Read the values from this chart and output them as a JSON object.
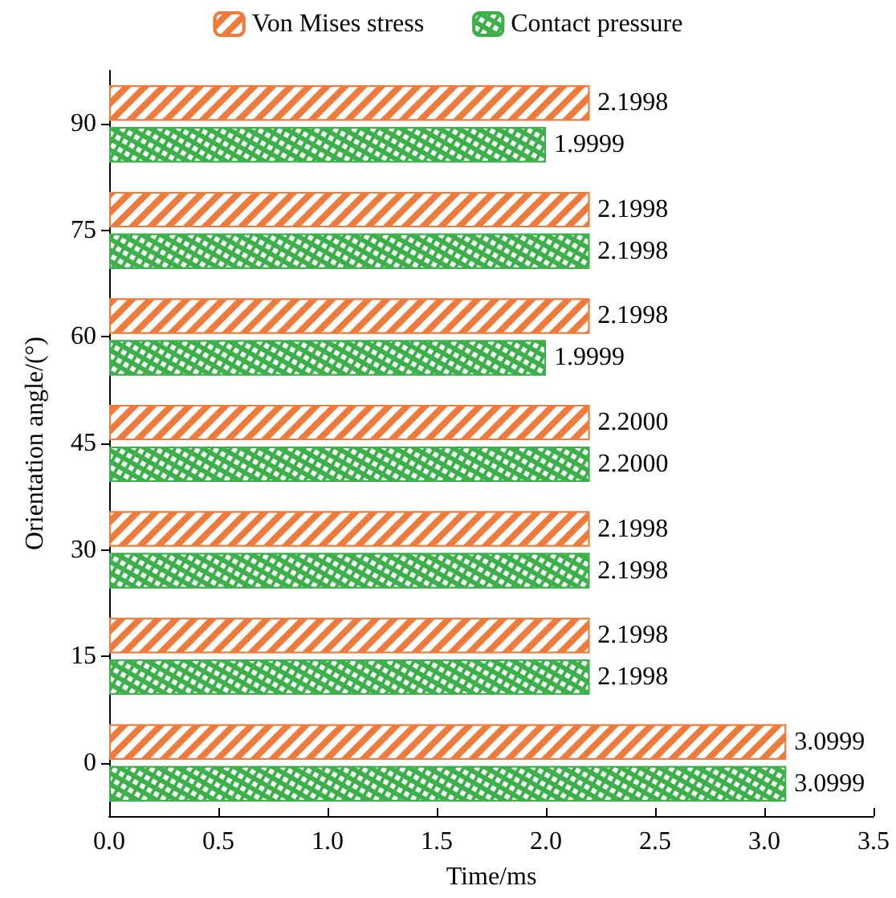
{
  "chart_data": {
    "type": "bar",
    "orientation": "horizontal",
    "xlabel": "Time/ms",
    "ylabel": "Orientation angle/(°)",
    "categories": [
      "90",
      "75",
      "60",
      "45",
      "30",
      "15",
      "0"
    ],
    "series": [
      {
        "name": "Von Mises stress",
        "color": "#ee7b3c",
        "values": [
          2.1998,
          2.1998,
          2.1998,
          2.2,
          2.1998,
          2.1998,
          3.0999
        ],
        "value_labels": [
          "2.1998",
          "2.1998",
          "2.1998",
          "2.2000",
          "2.1998",
          "2.1998",
          "3.0999"
        ]
      },
      {
        "name": "Contact pressure",
        "color": "#3db04b",
        "values": [
          1.9999,
          2.1998,
          1.9999,
          2.2,
          2.1998,
          2.1998,
          3.0999
        ],
        "value_labels": [
          "1.9999",
          "2.1998",
          "1.9999",
          "2.2000",
          "2.1998",
          "2.1998",
          "3.0999"
        ]
      }
    ],
    "xlim": [
      0,
      3.5
    ],
    "xticks": [
      {
        "value": 0,
        "label": "0.0"
      },
      {
        "value": 0.5,
        "label": "0.5"
      },
      {
        "value": 1,
        "label": "1.0"
      },
      {
        "value": 1.5,
        "label": "1.5"
      },
      {
        "value": 2,
        "label": "2.0"
      },
      {
        "value": 2.5,
        "label": "2.5"
      },
      {
        "value": 3,
        "label": "3.0"
      },
      {
        "value": 3.5,
        "label": "3.5"
      }
    ],
    "legend": "top",
    "grid": false
  }
}
